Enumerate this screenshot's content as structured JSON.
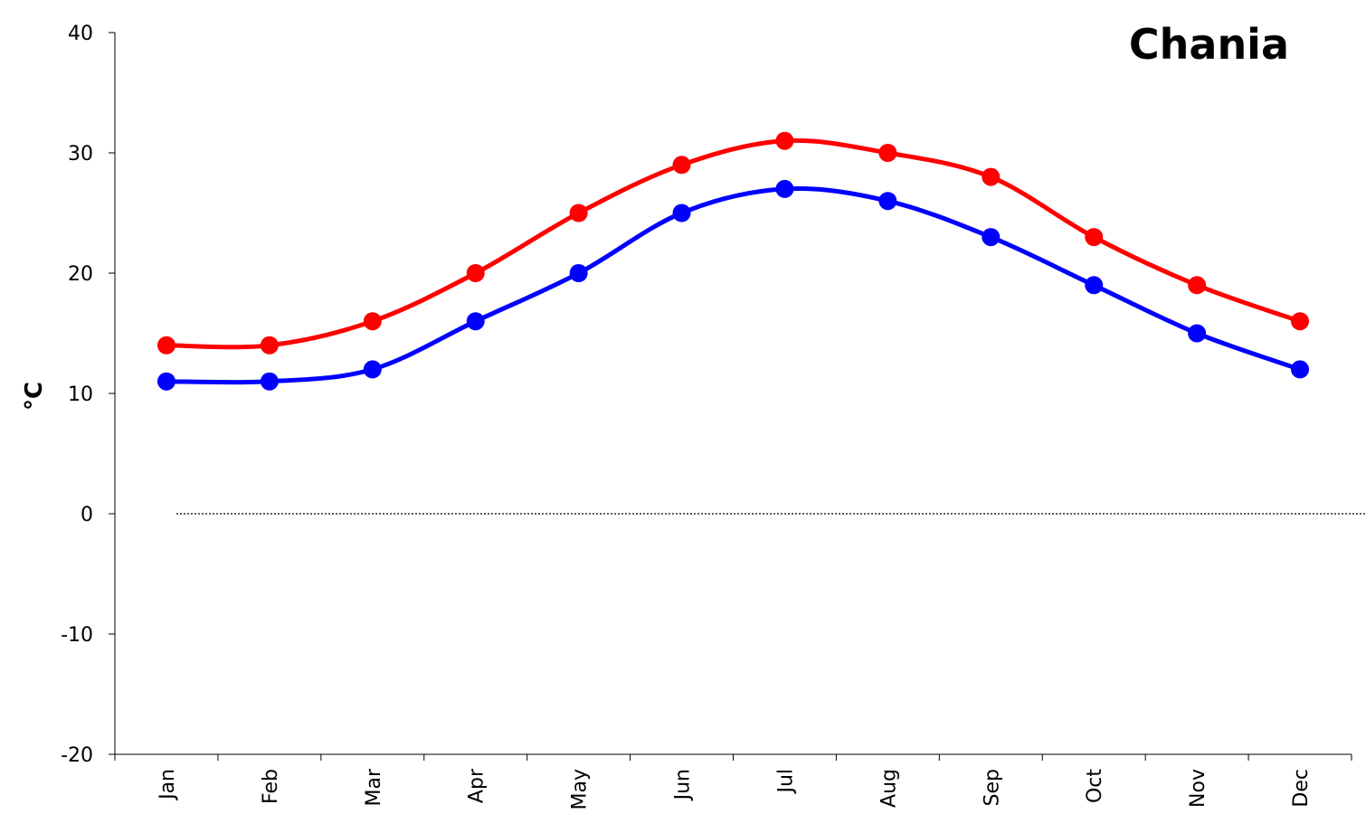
{
  "chart_data": {
    "type": "line",
    "title": "Chania",
    "xlabel": "",
    "ylabel": "°C",
    "ylim": [
      -20,
      40
    ],
    "yticks": [
      -20,
      -10,
      0,
      10,
      20,
      30,
      40
    ],
    "categories": [
      "Jan",
      "Feb",
      "Mar",
      "Apr",
      "May",
      "Jun",
      "Jul",
      "Aug",
      "Sep",
      "Oct",
      "Nov",
      "Dec"
    ],
    "grid": false,
    "legend": "none",
    "reference_line": {
      "y": 0,
      "style": "dotted",
      "color": "#000000"
    },
    "series": [
      {
        "color": "#ff0000",
        "values": [
          14,
          14,
          16,
          20,
          25,
          29,
          31,
          30,
          28,
          23,
          19,
          16
        ]
      },
      {
        "color": "#0000ff",
        "values": [
          11,
          11,
          12,
          16,
          20,
          25,
          27,
          26,
          23,
          19,
          15,
          12
        ]
      }
    ]
  }
}
